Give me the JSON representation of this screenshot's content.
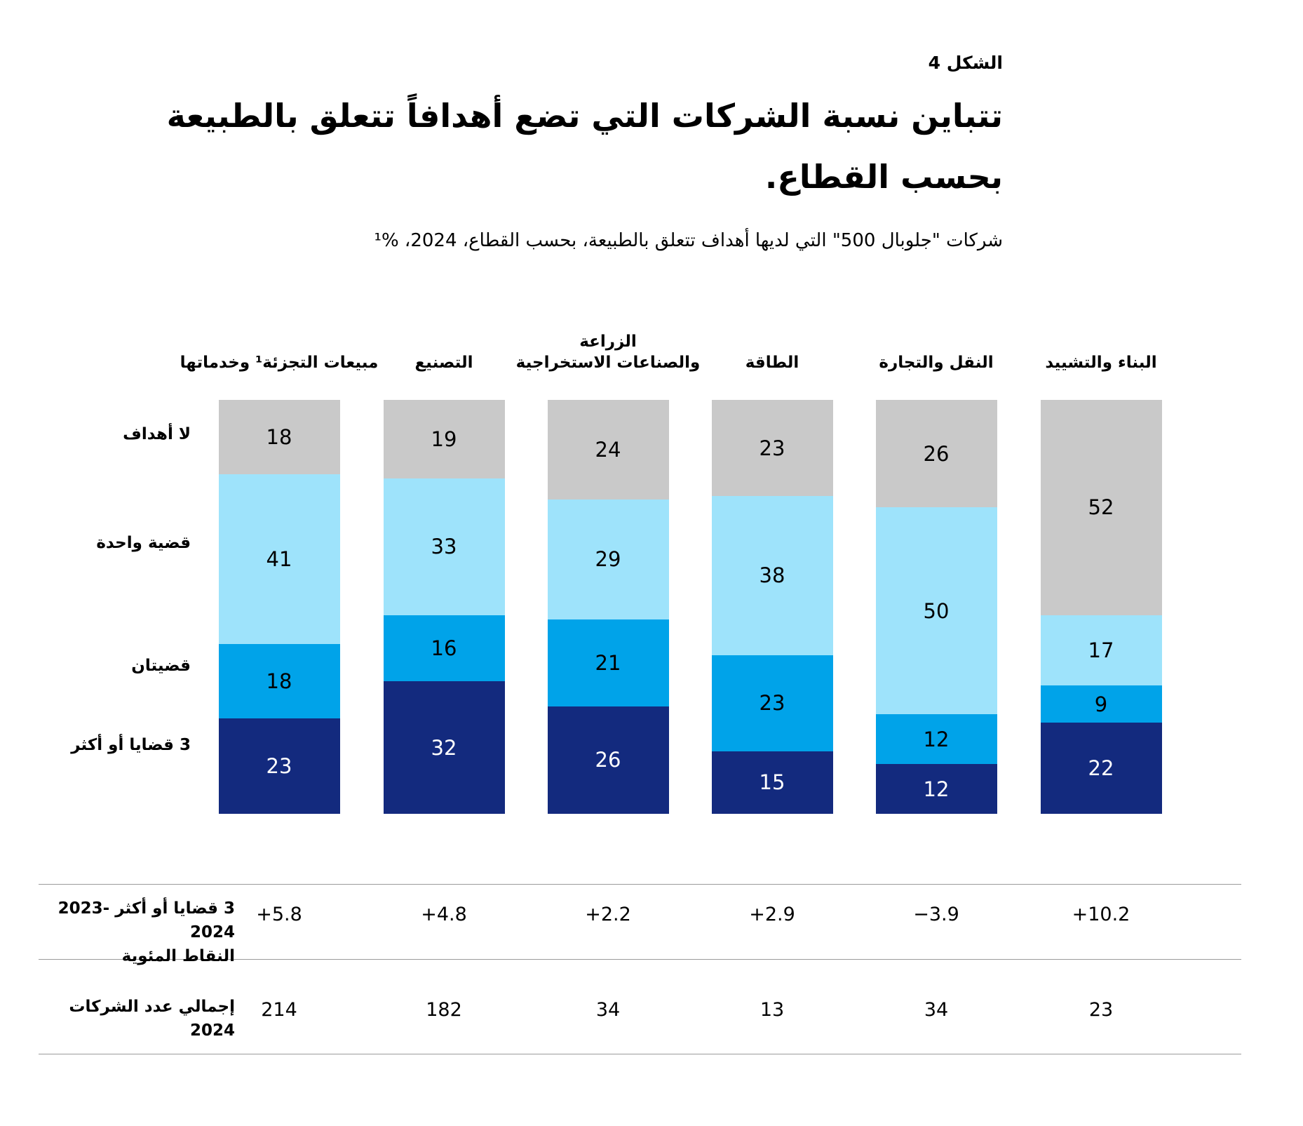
{
  "figure_label": "الشكل 4",
  "title_line1": "تتباين نسبة الشركات التي تضع أهدافاً تتعلق بالطبيعة",
  "title_line2": "بحسب القطاع.",
  "subtitle": "شركات \"جلوبال 500\" التي لديها أهداف تتعلق بالطبيعة، بحسب القطاع، 2024، %¹",
  "colors": {
    "no_targets_gray": "#c9c9c9",
    "one_issue_light_blue": "#9ee3fb",
    "two_issues_blue": "#00a3e9",
    "three_issues_navy": "#132a7e",
    "background": "#ffffff",
    "divider_gray": "#9b9b9b"
  },
  "chart_data": {
    "type": "bar",
    "stacked": true,
    "unit": "%",
    "direction": "rtl",
    "ylim": [
      0,
      100
    ],
    "grid": false,
    "legend_position": "left-row-labels",
    "categories": [
      "مبيعات التجزئة¹ وخدماتها",
      "التصنيع",
      "الزراعة والصناعات الاستخراجية",
      "الطاقة",
      "النقل والتجارة",
      "البناء والتشييد"
    ],
    "category_header_lines": [
      [
        "مبيعات التجزئة¹ وخدماتها"
      ],
      [
        "التصنيع"
      ],
      [
        "الزراعة",
        "والصناعات الاستخراجية"
      ],
      [
        "الطاقة"
      ],
      [
        "النقل والتجارة"
      ],
      [
        "البناء والتشييد"
      ]
    ],
    "series": [
      {
        "name": "لا أهداف",
        "color": "#c9c9c9",
        "label_color": "#000000",
        "values": [
          18,
          19,
          24,
          23,
          26,
          52
        ]
      },
      {
        "name": "قضية واحدة",
        "color": "#9ee3fb",
        "label_color": "#000000",
        "values": [
          41,
          33,
          29,
          38,
          50,
          17
        ]
      },
      {
        "name": "قضيتان",
        "color": "#00a3e9",
        "label_color": "#000000",
        "values": [
          18,
          16,
          21,
          23,
          12,
          9
        ]
      },
      {
        "name": "3 قضايا أو أكثر",
        "color": "#132a7e",
        "label_color": "#ffffff",
        "values": [
          23,
          32,
          26,
          15,
          12,
          22
        ]
      }
    ]
  },
  "table": {
    "rows": [
      {
        "label_main": "3 قضايا أو أكثر",
        "label_years": "2023-2024",
        "label_sub": "النقاط المئوية",
        "values": [
          "+5.8",
          "+4.8",
          "+2.2",
          "+2.9",
          "−3.9",
          "+10.2"
        ]
      },
      {
        "label_main": "إجمالي عدد الشركات 2024",
        "label_years": "",
        "label_sub": "",
        "values": [
          "214",
          "182",
          "34",
          "13",
          "34",
          "23"
        ]
      }
    ]
  }
}
